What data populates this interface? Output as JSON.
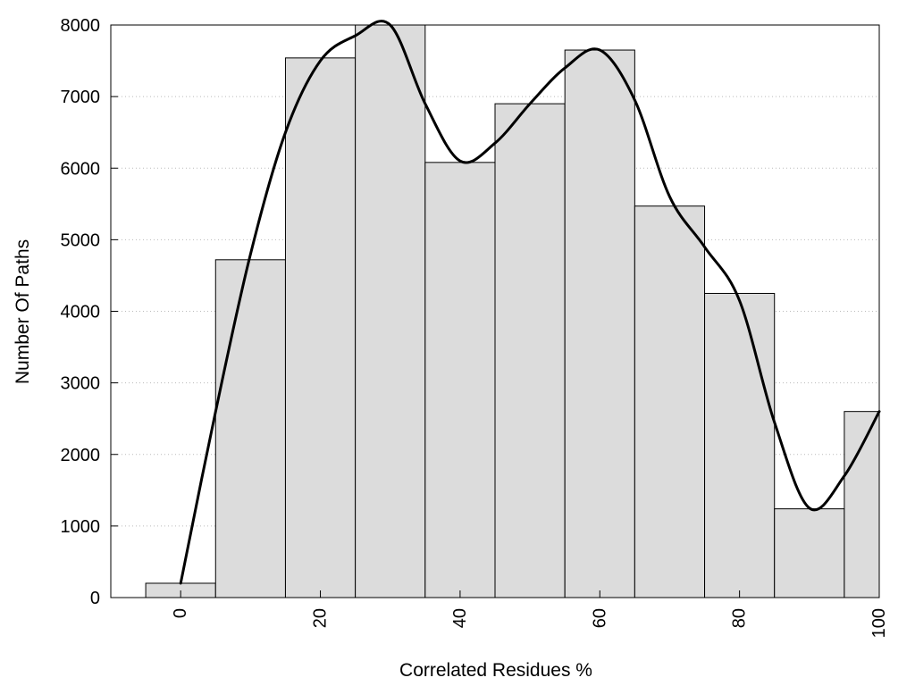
{
  "chart_data": {
    "type": "bar",
    "title": "",
    "xlabel": "Correlated Residues %",
    "ylabel": "Number Of Paths",
    "xlim": [
      -10,
      100
    ],
    "ylim": [
      0,
      8000
    ],
    "x_ticks": [
      "0",
      "20",
      "40",
      "60",
      "80",
      "100"
    ],
    "y_ticks": [
      "0",
      "1000",
      "2000",
      "3000",
      "4000",
      "5000",
      "6000",
      "7000",
      "8000"
    ],
    "grid": "horizontal-dotted",
    "bins": [
      {
        "start": -5,
        "end": 5,
        "value": 200
      },
      {
        "start": 5,
        "end": 15,
        "value": 4720
      },
      {
        "start": 15,
        "end": 25,
        "value": 7540
      },
      {
        "start": 25,
        "end": 35,
        "value": 8000
      },
      {
        "start": 35,
        "end": 45,
        "value": 6080
      },
      {
        "start": 45,
        "end": 55,
        "value": 6900
      },
      {
        "start": 55,
        "end": 65,
        "value": 7650
      },
      {
        "start": 65,
        "end": 75,
        "value": 5470
      },
      {
        "start": 75,
        "end": 85,
        "value": 4250
      },
      {
        "start": 85,
        "end": 95,
        "value": 1240
      },
      {
        "start": 95,
        "end": 100,
        "value": 2600
      }
    ],
    "curve": {
      "x": [
        0,
        5,
        10,
        15,
        20,
        25,
        30,
        35,
        40,
        45,
        50,
        55,
        60,
        65,
        70,
        75,
        80,
        85,
        90,
        95,
        100
      ],
      "y": [
        200,
        2600,
        4800,
        6500,
        7500,
        7850,
        8000,
        6900,
        6100,
        6350,
        6900,
        7400,
        7650,
        6950,
        5600,
        4900,
        4150,
        2450,
        1250,
        1700,
        2600
      ]
    },
    "colors": {
      "bar_fill": "#dcdcdc",
      "bar_stroke": "#000000",
      "curve": "#000000",
      "grid": "#bbbbbb"
    }
  }
}
